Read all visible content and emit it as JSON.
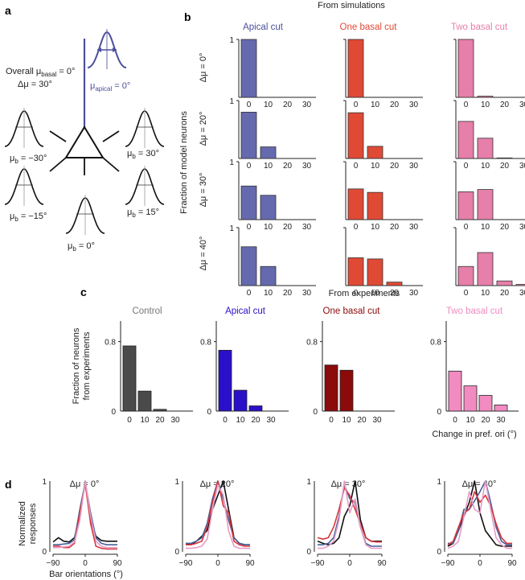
{
  "panel_labels": {
    "a": "a",
    "b": "b",
    "c": "c",
    "d": "d"
  },
  "colors": {
    "apical": "#4c4f9c",
    "apical_light": "#6569ad",
    "one_basal": "#e04a35",
    "two_basal": "#e67faa",
    "control_exp": "#4a4a4a",
    "apical_exp": "#2a10c8",
    "one_basal_exp": "#8b0a0a",
    "two_basal_exp": "#f28bc0",
    "tuning_black": "#111111",
    "tuning_blue": "#47609a",
    "tuning_red": "#d8363c",
    "tuning_pink": "#e69cc5"
  },
  "schematic": {
    "overall_prefix": "Overall μ",
    "overall_sub": "basal",
    "overall_suffix": " = 0°",
    "delta_mu": "Δμ = 30°",
    "apical_prefix": "μ",
    "apical_sub": "apical",
    "apical_suffix": " = 0°",
    "mu_symbol": "μ",
    "mu_sub": "b",
    "basal_labels": [
      " = −30°",
      " = −15°",
      " = 0°",
      " = 15°",
      " = 30°"
    ]
  },
  "chart_data": [
    {
      "id": "b",
      "type": "bar",
      "title": "From simulations",
      "ylabel": "Fraction of model neurons",
      "categories": [
        "0",
        "10",
        "20",
        "30"
      ],
      "ylim": [
        0,
        1
      ],
      "yticks": [
        "1",
        "0"
      ],
      "columns": [
        "Apical cut",
        "One basal cut",
        "Two basal cut"
      ],
      "rows": [
        "Δμ = 0°",
        "Δμ = 20°",
        "Δμ = 30°",
        "Δμ = 40°"
      ],
      "values": [
        [
          [
            1.0,
            0,
            0,
            0
          ],
          [
            1.0,
            0,
            0,
            0
          ],
          [
            1.0,
            0.02,
            0,
            0
          ]
        ],
        [
          [
            0.8,
            0.2,
            0,
            0
          ],
          [
            0.79,
            0.21,
            0,
            0
          ],
          [
            0.64,
            0.35,
            0.01,
            0
          ]
        ],
        [
          [
            0.58,
            0.42,
            0,
            0
          ],
          [
            0.53,
            0.47,
            0,
            0
          ],
          [
            0.48,
            0.52,
            0,
            0
          ]
        ],
        [
          [
            0.67,
            0.33,
            0,
            0
          ],
          [
            0.48,
            0.46,
            0.06,
            0
          ],
          [
            0.33,
            0.57,
            0.08,
            0.02
          ]
        ]
      ]
    },
    {
      "id": "c",
      "type": "bar",
      "title": "From experiments",
      "ylabel": "Fraction of neurons from experiments",
      "ylabel_lines": [
        "Fraction of neurons",
        "from experiments"
      ],
      "xlabel": "Change in pref. ori (°)",
      "categories": [
        "0",
        "10",
        "20",
        "30"
      ],
      "ylim": [
        0,
        1
      ],
      "yticks": [
        "0.8",
        "0"
      ],
      "series": [
        {
          "name": "Control",
          "values": [
            0.75,
            0.23,
            0.02,
            0
          ]
        },
        {
          "name": "Apical cut",
          "values": [
            0.7,
            0.24,
            0.06,
            0
          ]
        },
        {
          "name": "One basal cut",
          "values": [
            0.53,
            0.47,
            0,
            0
          ]
        },
        {
          "name": "Two basal cut",
          "values": [
            0.46,
            0.29,
            0.18,
            0.07
          ]
        }
      ]
    },
    {
      "id": "d",
      "type": "line",
      "ylabel": "Normalized responses",
      "ylabel_lines": [
        "Normalized",
        "responses"
      ],
      "xlabel": "Bar orientations (°)",
      "xlim": [
        -90,
        90
      ],
      "ylim": [
        0,
        1
      ],
      "xticks": [
        "−90",
        "0",
        "90"
      ],
      "yticks": [
        "1",
        "0"
      ],
      "x": [
        -90,
        -75,
        -60,
        -45,
        -30,
        -15,
        0,
        15,
        30,
        45,
        60,
        75,
        90
      ],
      "panels": [
        {
          "title": "Δμ = 0°",
          "series": [
            {
              "name": "Control",
              "values": [
                0.06,
                0.06,
                0.07,
                0.08,
                0.14,
                0.45,
                1.0,
                0.5,
                0.15,
                0.08,
                0.06,
                0.06,
                0.06
              ]
            },
            {
              "name": "Apical cut",
              "values": [
                0.08,
                0.08,
                0.06,
                0.06,
                0.12,
                0.55,
                0.96,
                0.4,
                0.08,
                0.05,
                0.04,
                0.04,
                0.04
              ]
            },
            {
              "name": "One basal cut",
              "values": [
                0.1,
                0.1,
                0.11,
                0.12,
                0.17,
                0.6,
                0.98,
                0.55,
                0.2,
                0.12,
                0.1,
                0.1,
                0.1
              ]
            },
            {
              "name": "Two basal cut",
              "values": [
                0.14,
                0.2,
                0.15,
                0.14,
                0.2,
                0.5,
                1.0,
                0.45,
                0.22,
                0.16,
                0.15,
                0.15,
                0.15
              ]
            }
          ]
        },
        {
          "title": "Δμ = 20°",
          "series": [
            {
              "name": "Control",
              "values": [
                0.05,
                0.05,
                0.06,
                0.08,
                0.18,
                0.6,
                0.95,
                0.8,
                0.3,
                0.08,
                0.05,
                0.05,
                0.05
              ]
            },
            {
              "name": "Apical cut",
              "values": [
                0.1,
                0.1,
                0.12,
                0.15,
                0.35,
                0.7,
                1.0,
                0.65,
                0.55,
                0.15,
                0.1,
                0.08,
                0.08
              ]
            },
            {
              "name": "One basal cut",
              "values": [
                0.12,
                0.12,
                0.15,
                0.2,
                0.4,
                0.75,
                1.0,
                0.75,
                0.45,
                0.2,
                0.12,
                0.1,
                0.1
              ]
            },
            {
              "name": "Two basal cut",
              "values": [
                0.12,
                0.1,
                0.15,
                0.22,
                0.3,
                0.6,
                0.8,
                1.0,
                0.6,
                0.2,
                0.12,
                0.1,
                0.1
              ]
            }
          ]
        },
        {
          "title": "Δμ = 30°",
          "series": [
            {
              "name": "Control",
              "values": [
                0.05,
                0.05,
                0.08,
                0.15,
                0.45,
                1.0,
                0.55,
                0.75,
                0.35,
                0.1,
                0.05,
                0.05,
                0.05
              ]
            },
            {
              "name": "Apical cut",
              "values": [
                0.2,
                0.18,
                0.2,
                0.35,
                0.6,
                0.9,
                0.8,
                0.6,
                0.4,
                0.2,
                0.15,
                0.14,
                0.14
              ]
            },
            {
              "name": "One basal cut",
              "values": [
                0.1,
                0.1,
                0.12,
                0.2,
                0.5,
                0.95,
                0.75,
                0.7,
                0.35,
                0.12,
                0.08,
                0.08,
                0.08
              ]
            },
            {
              "name": "Two basal cut",
              "values": [
                0.15,
                0.12,
                0.1,
                0.12,
                0.2,
                0.5,
                0.65,
                1.0,
                0.45,
                0.2,
                0.15,
                0.15,
                0.15
              ]
            }
          ]
        },
        {
          "title": "Δμ = 40°",
          "series": [
            {
              "name": "Control",
              "values": [
                0.05,
                0.08,
                0.15,
                0.5,
                0.85,
                0.6,
                0.55,
                1.0,
                0.6,
                0.2,
                0.1,
                0.05,
                0.05
              ]
            },
            {
              "name": "Apical cut",
              "values": [
                0.1,
                0.15,
                0.35,
                0.55,
                0.6,
                0.85,
                0.7,
                0.8,
                0.65,
                0.4,
                0.2,
                0.12,
                0.12
              ]
            },
            {
              "name": "One basal cut",
              "values": [
                0.12,
                0.12,
                0.3,
                0.6,
                0.6,
                0.72,
                0.85,
                1.0,
                0.7,
                0.35,
                0.15,
                0.1,
                0.1
              ]
            },
            {
              "name": "Two basal cut",
              "values": [
                0.08,
                0.12,
                0.3,
                0.5,
                0.7,
                1.0,
                0.55,
                0.3,
                0.2,
                0.1,
                0.08,
                0.08,
                0.08
              ]
            }
          ]
        }
      ]
    }
  ]
}
